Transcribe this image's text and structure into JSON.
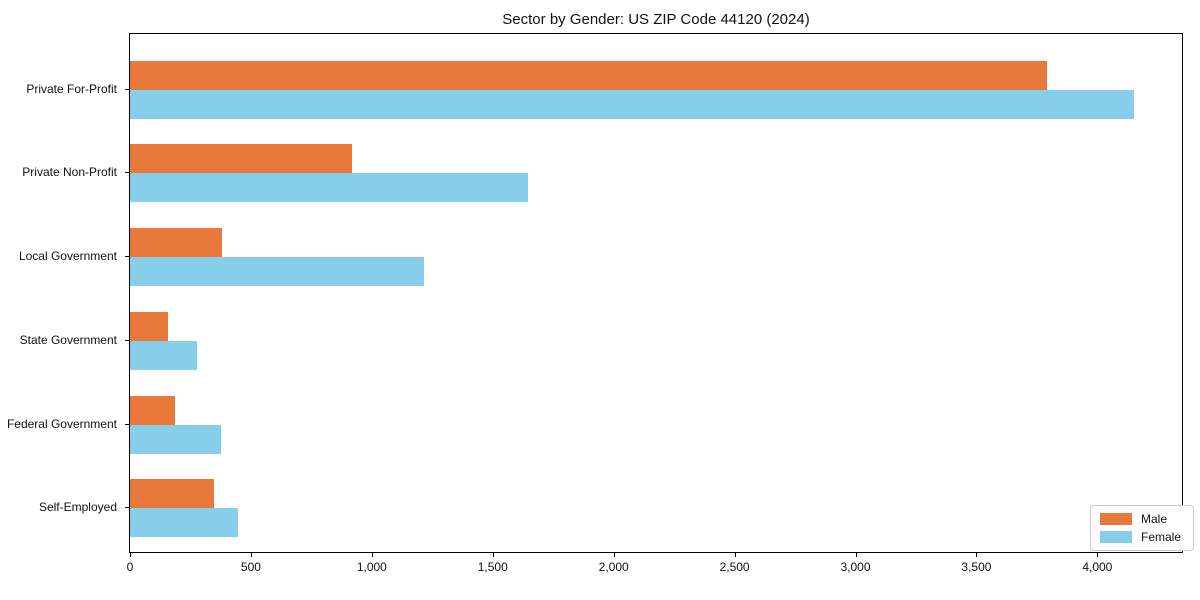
{
  "chart_data": {
    "type": "bar",
    "orientation": "horizontal",
    "title": "Sector by Gender: US ZIP Code 44120 (2024)",
    "xlabel": "",
    "ylabel": "",
    "categories": [
      "Private For-Profit",
      "Private Non-Profit",
      "Local Government",
      "State Government",
      "Federal Government",
      "Self-Employed"
    ],
    "series": [
      {
        "name": "Male",
        "color": "#E8793B",
        "values": [
          3790,
          920,
          380,
          158,
          185,
          348
        ]
      },
      {
        "name": "Female",
        "color": "#87CEEB",
        "values": [
          4150,
          1645,
          1215,
          279,
          375,
          446
        ]
      }
    ],
    "xlim": [
      0,
      4350
    ],
    "xticks": {
      "values": [
        0,
        500,
        1000,
        1500,
        2000,
        2500,
        3000,
        3500,
        4000
      ],
      "labels": [
        "0",
        "500",
        "1,000",
        "1,500",
        "2,000",
        "2,500",
        "3,000",
        "3,500",
        "4,000"
      ]
    },
    "grid": false,
    "legend": {
      "position": "lower right"
    },
    "colors": {
      "male": "#E8793B",
      "female": "#87CEEB",
      "axis": "#000000",
      "text": "#111111",
      "background": "#ffffff",
      "legend_border": "#cccccc"
    }
  }
}
